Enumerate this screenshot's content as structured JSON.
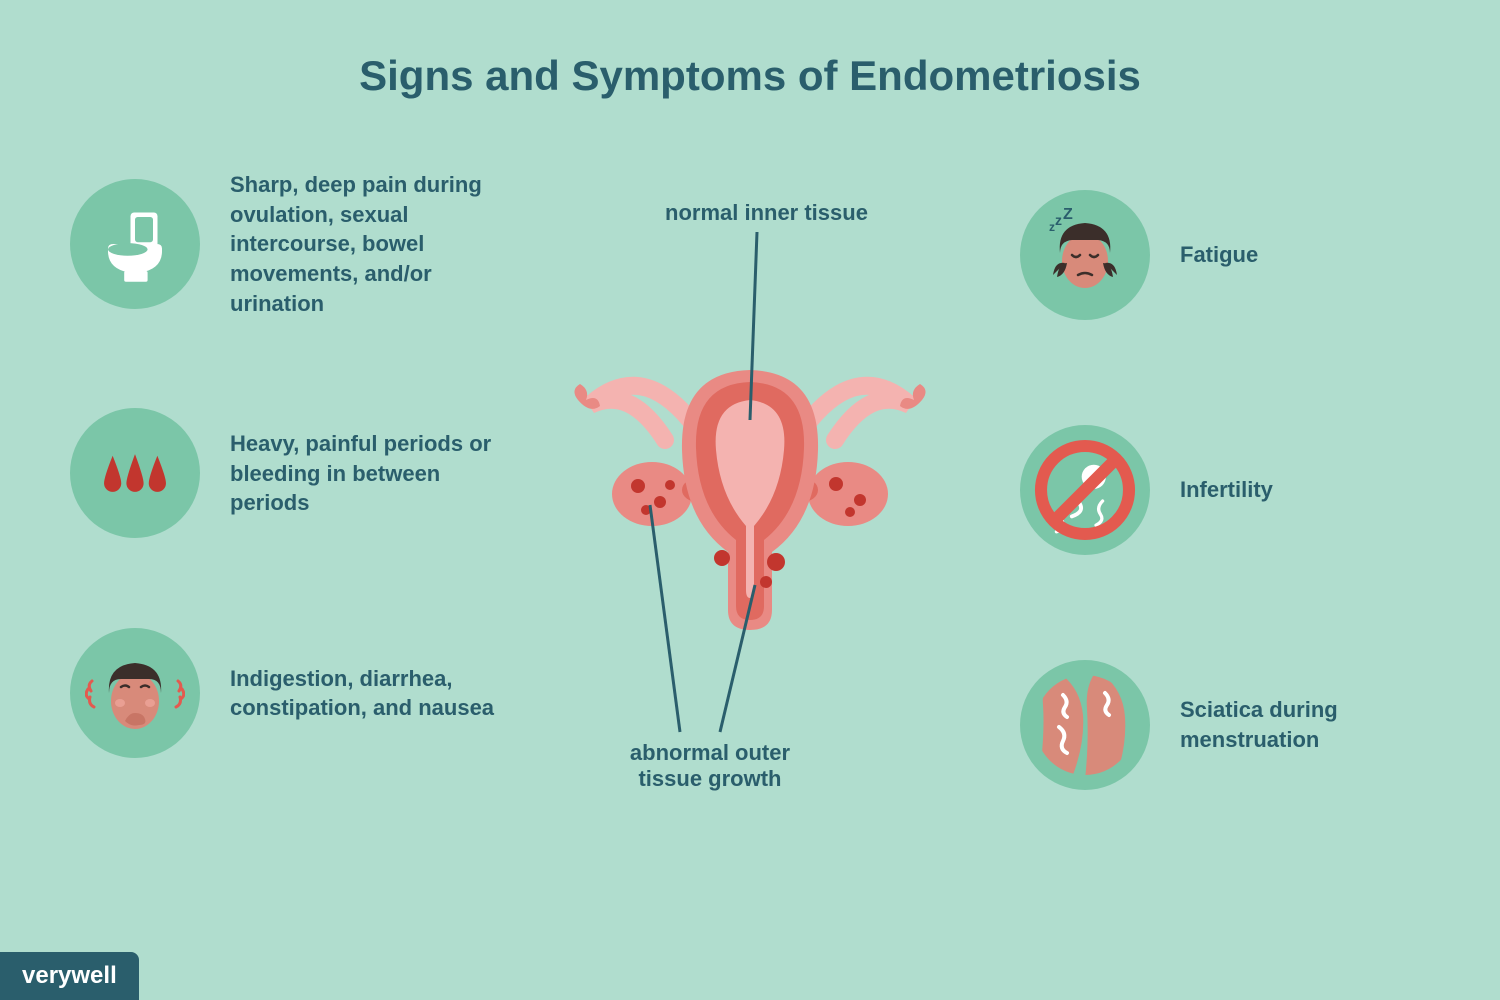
{
  "colors": {
    "background": "#b0ddce",
    "title": "#2a5e6c",
    "text": "#2a5e6c",
    "circle": "#7bc6a8",
    "red": "#e35a4f",
    "darkred": "#c2362e",
    "white": "#ffffff",
    "pink_light": "#f4b3b0",
    "pink_mid": "#e98a84",
    "pink_dark": "#e06a60",
    "anno_line": "#2a5e6c",
    "badge_bg": "#2a5e6c",
    "badge_text": "#ffffff",
    "skin": "#d88a7a",
    "hair": "#3b2e2a"
  },
  "typography": {
    "title_fontsize": 42,
    "item_fontsize": 22,
    "anno_fontsize": 22,
    "badge_fontsize": 24
  },
  "layout": {
    "icon_diameter": 130,
    "line_width": 3
  },
  "title": "Signs and Symptoms of Endometriosis",
  "left_items": [
    {
      "icon": "toilet",
      "text": "Sharp, deep pain during ovulation, sexual intercourse, bowel movements, and/or urination"
    },
    {
      "icon": "drops",
      "text": "Heavy, painful periods or bleeding in between periods"
    },
    {
      "icon": "nausea",
      "text": "Indigestion, diarrhea, constipation, and nausea"
    }
  ],
  "right_items": [
    {
      "icon": "fatigue",
      "text": "Fatigue"
    },
    {
      "icon": "no-sperm",
      "text": "Infertility"
    },
    {
      "icon": "leg-pain",
      "text": "Sciatica during menstruation"
    }
  ],
  "annotations": {
    "inner": "normal inner tissue",
    "outer": "abnormal outer tissue growth"
  },
  "badge": "verywell"
}
